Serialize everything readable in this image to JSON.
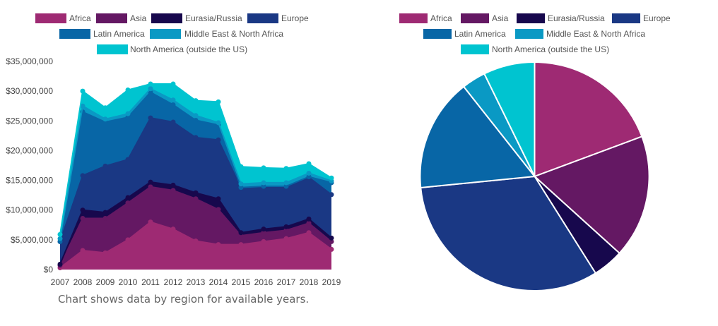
{
  "caption": "Chart shows data by region for available years.",
  "colors": {
    "Africa": "#9e2a73",
    "Asia": "#641863",
    "Eurasia/Russia": "#17084d",
    "Europe": "#1a3884",
    "Latin America": "#0866a6",
    "Middle East & North Africa": "#0a99c4",
    "North America (outside the US)": "#00c4d0"
  },
  "chart_data": [
    {
      "type": "area",
      "stacked": true,
      "title": "",
      "xlabel": "",
      "ylabel": "",
      "x": [
        "2007",
        "2008",
        "2009",
        "2010",
        "2011",
        "2012",
        "2013",
        "2014",
        "2015",
        "2016",
        "2017",
        "2018",
        "2019"
      ],
      "ylim": [
        0,
        35000000
      ],
      "yticks": [
        0,
        5000000,
        10000000,
        15000000,
        20000000,
        25000000,
        30000000,
        35000000
      ],
      "ytick_labels": [
        "$0",
        "$5,000,000",
        "$10,000,000",
        "$15,000,000",
        "$20,000,000",
        "$25,000,000",
        "$30,000,000",
        "$35,000,000"
      ],
      "legend": "top",
      "series": [
        {
          "name": "Africa",
          "values": [
            300000,
            3200000,
            2800000,
            5000000,
            8000000,
            6800000,
            4800000,
            4200000,
            4200000,
            4700000,
            5200000,
            6200000,
            3400000
          ]
        },
        {
          "name": "Asia",
          "values": [
            400000,
            5400000,
            5800000,
            6200000,
            5900000,
            6500000,
            7100000,
            5900000,
            1500000,
            1500000,
            1400000,
            1600000,
            1300000
          ]
        },
        {
          "name": "Eurasia/Russia",
          "values": [
            200000,
            1400000,
            1000000,
            900000,
            800000,
            900000,
            1000000,
            1800000,
            500000,
            600000,
            600000,
            700000,
            600000
          ]
        },
        {
          "name": "Europe",
          "values": [
            3800000,
            5800000,
            7800000,
            6400000,
            10800000,
            10600000,
            9300000,
            9900000,
            7500000,
            7100000,
            6700000,
            7000000,
            7300000
          ]
        },
        {
          "name": "Latin America",
          "values": [
            0,
            10700000,
            7400000,
            7100000,
            4300000,
            2900000,
            2900000,
            2500000,
            100000,
            100000,
            100000,
            100000,
            2000000
          ]
        },
        {
          "name": "Middle East & North Africa",
          "values": [
            500000,
            1000000,
            500000,
            600000,
            600000,
            800000,
            800000,
            400000,
            600000,
            600000,
            600000,
            600000,
            300000
          ]
        },
        {
          "name": "North America (outside the US)",
          "values": [
            700000,
            2500000,
            1900000,
            4000000,
            800000,
            2700000,
            2500000,
            3500000,
            2900000,
            2500000,
            2400000,
            1600000,
            500000
          ]
        }
      ]
    },
    {
      "type": "pie",
      "title": "",
      "legend": "top",
      "slices": [
        {
          "name": "Africa",
          "value": 20.0
        },
        {
          "name": "Asia",
          "value": 18.0
        },
        {
          "name": "Eurasia/Russia",
          "value": 4.5
        },
        {
          "name": "Europe",
          "value": 33.5
        },
        {
          "name": "Latin America",
          "value": 16.5
        },
        {
          "name": "Middle East & North Africa",
          "value": 3.5
        },
        {
          "name": "North America (outside the US)",
          "value": 7.5
        }
      ]
    }
  ]
}
